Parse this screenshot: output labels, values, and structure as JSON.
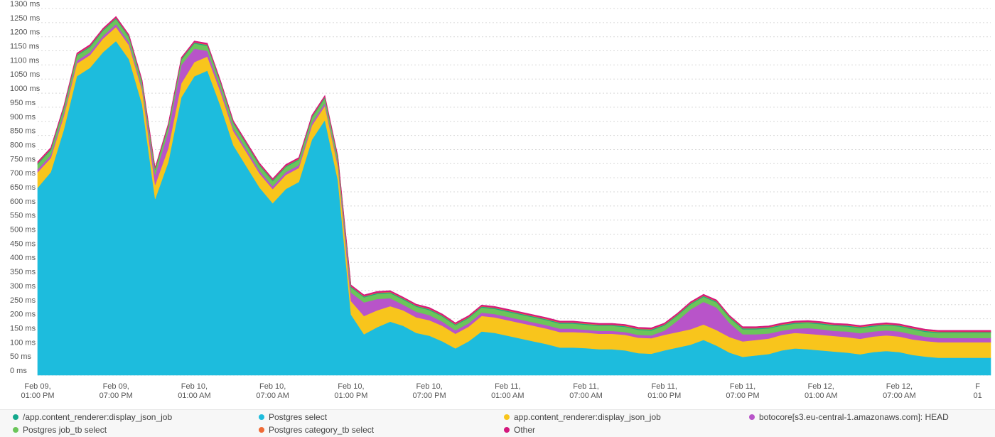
{
  "chart_data": {
    "type": "area",
    "stacked": true,
    "y_unit": "ms",
    "ylim": [
      0,
      1300
    ],
    "y_ticks": [
      "0 ms",
      "50 ms",
      "100 ms",
      "150 ms",
      "200 ms",
      "250 ms",
      "300 ms",
      "350 ms",
      "400 ms",
      "450 ms",
      "500 ms",
      "550 ms",
      "600 ms",
      "650 ms",
      "700 ms",
      "750 ms",
      "800 ms",
      "850 ms",
      "900 ms",
      "950 ms",
      "1000 ms",
      "1050 ms",
      "1100 ms",
      "1150 ms",
      "1200 ms",
      "1250 ms",
      "1300 ms"
    ],
    "x_ticks": [
      {
        "line1": "Feb 09,",
        "line2": "01:00 PM"
      },
      {
        "line1": "Feb 09,",
        "line2": "07:00 PM"
      },
      {
        "line1": "Feb 10,",
        "line2": "01:00 AM"
      },
      {
        "line1": "Feb 10,",
        "line2": "07:00 AM"
      },
      {
        "line1": "Feb 10,",
        "line2": "01:00 PM"
      },
      {
        "line1": "Feb 10,",
        "line2": "07:00 PM"
      },
      {
        "line1": "Feb 11,",
        "line2": "01:00 AM"
      },
      {
        "line1": "Feb 11,",
        "line2": "07:00 AM"
      },
      {
        "line1": "Feb 11,",
        "line2": "01:00 PM"
      },
      {
        "line1": "Feb 11,",
        "line2": "07:00 PM"
      },
      {
        "line1": "Feb 12,",
        "line2": "01:00 AM"
      },
      {
        "line1": "Feb 12,",
        "line2": "07:00 AM"
      },
      {
        "line1": "F",
        "line2": "01"
      }
    ],
    "x_hours": [
      0,
      1,
      2,
      3,
      4,
      5,
      6,
      7,
      8,
      9,
      10,
      11,
      12,
      13,
      14,
      15,
      16,
      17,
      18,
      19,
      20,
      21,
      22,
      23,
      24,
      25,
      26,
      27,
      28,
      29,
      30,
      31,
      32,
      33,
      34,
      35,
      36,
      37,
      38,
      39,
      40,
      41,
      42,
      43,
      44,
      45,
      46,
      47,
      48,
      49,
      50,
      51,
      52,
      53,
      54,
      55,
      56,
      57,
      58,
      59,
      60,
      61,
      62,
      63,
      64,
      65,
      66,
      67,
      68,
      69,
      70,
      71,
      72,
      73
    ],
    "grid": true,
    "legend_position": "bottom",
    "series": [
      {
        "name": "Postgres select",
        "color": "#1dbcdd",
        "values": [
          665,
          720,
          870,
          1060,
          1090,
          1145,
          1185,
          1120,
          960,
          625,
          755,
          985,
          1060,
          1080,
          955,
          815,
          740,
          665,
          610,
          660,
          685,
          835,
          905,
          690,
          215,
          145,
          170,
          190,
          175,
          150,
          140,
          120,
          95,
          120,
          155,
          150,
          140,
          130,
          120,
          110,
          98,
          98,
          96,
          92,
          92,
          88,
          78,
          76,
          88,
          98,
          108,
          125,
          105,
          80,
          65,
          70,
          75,
          88,
          95,
          92,
          88,
          84,
          80,
          74,
          82,
          86,
          82,
          72,
          66,
          62,
          62,
          62,
          62,
          62
        ]
      },
      {
        "name": "app.content_renderer:display_json_job",
        "color": "#f8c51c",
        "values": [
          55,
          50,
          48,
          45,
          45,
          48,
          50,
          50,
          50,
          50,
          50,
          50,
          50,
          50,
          50,
          50,
          50,
          50,
          50,
          50,
          50,
          50,
          50,
          50,
          48,
          65,
          60,
          55,
          55,
          55,
          55,
          55,
          52,
          52,
          55,
          55,
          55,
          55,
          55,
          55,
          55,
          55,
          55,
          55,
          55,
          55,
          55,
          55,
          55,
          55,
          55,
          55,
          55,
          55,
          55,
          55,
          55,
          55,
          55,
          55,
          55,
          55,
          55,
          55,
          55,
          55,
          55,
          55,
          55,
          55,
          55,
          55,
          55,
          55
        ]
      },
      {
        "name": "botocore[s3.eu-central-1.amazonaws.com]: HEAD",
        "color": "#b854c9",
        "values": [
          10,
          10,
          10,
          10,
          10,
          10,
          10,
          10,
          10,
          35,
          60,
          65,
          48,
          20,
          14,
          10,
          10,
          10,
          10,
          10,
          10,
          10,
          10,
          10,
          30,
          48,
          40,
          28,
          20,
          20,
          18,
          15,
          12,
          12,
          12,
          12,
          12,
          12,
          12,
          12,
          12,
          12,
          10,
          10,
          10,
          10,
          10,
          10,
          15,
          40,
          70,
          80,
          80,
          50,
          25,
          20,
          18,
          15,
          15,
          20,
          20,
          18,
          20,
          20,
          18,
          18,
          18,
          18,
          15,
          15,
          15,
          15,
          15,
          15
        ]
      },
      {
        "name": "Postgres job_tb select",
        "color": "#6bc55a",
        "values": [
          18,
          18,
          18,
          18,
          18,
          18,
          18,
          18,
          18,
          18,
          18,
          18,
          18,
          18,
          18,
          18,
          18,
          18,
          18,
          18,
          18,
          18,
          18,
          18,
          18,
          18,
          18,
          18,
          18,
          18,
          18,
          18,
          18,
          18,
          18,
          18,
          18,
          18,
          18,
          18,
          18,
          18,
          18,
          18,
          18,
          18,
          18,
          18,
          18,
          18,
          18,
          18,
          18,
          18,
          18,
          18,
          18,
          18,
          18,
          18,
          18,
          18,
          18,
          18,
          18,
          18,
          18,
          18,
          18,
          18,
          18,
          18,
          18,
          18
        ]
      },
      {
        "name": "/app.content_renderer:display_json_job",
        "color": "#14a88c",
        "values": [
          3,
          3,
          3,
          3,
          3,
          3,
          3,
          3,
          3,
          3,
          3,
          3,
          3,
          3,
          3,
          3,
          3,
          3,
          3,
          3,
          3,
          3,
          3,
          3,
          3,
          3,
          3,
          3,
          3,
          3,
          3,
          3,
          3,
          3,
          3,
          3,
          3,
          3,
          3,
          3,
          3,
          3,
          3,
          3,
          3,
          3,
          3,
          3,
          3,
          3,
          3,
          3,
          3,
          3,
          3,
          3,
          3,
          3,
          3,
          3,
          3,
          3,
          3,
          3,
          3,
          3,
          3,
          3,
          3,
          3,
          3,
          3,
          3,
          3
        ]
      },
      {
        "name": "Postgres category_tb select",
        "color": "#ef6a35",
        "values": [
          2,
          2,
          2,
          2,
          2,
          2,
          2,
          2,
          2,
          2,
          2,
          2,
          2,
          2,
          2,
          2,
          2,
          2,
          2,
          2,
          2,
          2,
          2,
          2,
          2,
          2,
          2,
          2,
          2,
          2,
          2,
          2,
          2,
          2,
          2,
          2,
          2,
          2,
          2,
          2,
          2,
          2,
          2,
          2,
          2,
          2,
          2,
          2,
          2,
          2,
          2,
          2,
          2,
          2,
          2,
          2,
          2,
          2,
          2,
          2,
          2,
          2,
          2,
          2,
          2,
          2,
          2,
          2,
          2,
          2,
          2,
          2,
          2,
          2
        ]
      },
      {
        "name": "Other",
        "color": "#d4187d",
        "values": [
          4,
          4,
          4,
          4,
          4,
          4,
          4,
          4,
          4,
          4,
          4,
          4,
          4,
          4,
          4,
          4,
          4,
          4,
          4,
          4,
          4,
          4,
          4,
          4,
          4,
          4,
          4,
          4,
          4,
          4,
          4,
          4,
          4,
          4,
          4,
          4,
          4,
          4,
          4,
          4,
          4,
          4,
          4,
          4,
          4,
          4,
          4,
          4,
          4,
          4,
          4,
          4,
          4,
          4,
          4,
          4,
          4,
          4,
          4,
          4,
          4,
          4,
          4,
          4,
          4,
          4,
          4,
          4,
          4,
          4,
          4,
          4,
          4,
          4
        ]
      }
    ]
  },
  "legend": [
    {
      "label": "/app.content_renderer:display_json_job",
      "color": "#14a88c"
    },
    {
      "label": "Postgres select",
      "color": "#1dbcdd"
    },
    {
      "label": "app.content_renderer:display_json_job",
      "color": "#f8c51c"
    },
    {
      "label": "botocore[s3.eu-central-1.amazonaws.com]: HEAD",
      "color": "#b854c9"
    },
    {
      "label": "Postgres job_tb select",
      "color": "#6bc55a"
    },
    {
      "label": "Postgres category_tb select",
      "color": "#ef6a35"
    },
    {
      "label": "Other",
      "color": "#d4187d"
    }
  ]
}
